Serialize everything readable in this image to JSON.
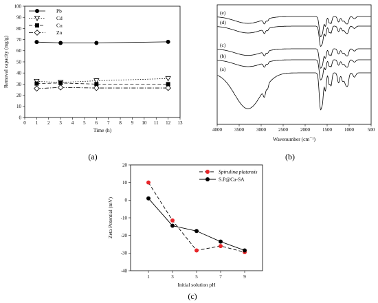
{
  "chart_data": [
    {
      "type": "scatter",
      "panel_label": "(a)",
      "xlabel": "Time (h)",
      "ylabel": "Removal capacity (mg/g)",
      "xlim": [
        0,
        13
      ],
      "ylim": [
        0,
        100
      ],
      "x_ticks": [
        "0",
        "1",
        "2",
        "3",
        "4",
        "5",
        "6",
        "7",
        "8",
        "9",
        "10",
        "11",
        "12",
        "13"
      ],
      "y_ticks": [
        "0",
        "10",
        "20",
        "30",
        "40",
        "50",
        "60",
        "70",
        "80",
        "90",
        "100"
      ],
      "legend_position": "top-left",
      "x": [
        1,
        3,
        6,
        12
      ],
      "series": [
        {
          "name": "Pb",
          "marker": "filled-circle",
          "line": "solid",
          "values": [
            67.8,
            67,
            67,
            68
          ]
        },
        {
          "name": "Cd",
          "marker": "open-triangle-down",
          "line": "dotted",
          "values": [
            32.5,
            31.5,
            33,
            35
          ]
        },
        {
          "name": "Cu",
          "marker": "filled-square",
          "line": "dashed",
          "values": [
            30.5,
            31,
            30,
            30
          ]
        },
        {
          "name": "Zn",
          "marker": "open-diamond",
          "line": "dash-dot",
          "values": [
            26,
            27,
            26.5,
            26.5
          ]
        }
      ]
    },
    {
      "type": "line",
      "panel_label": "(b)",
      "xlabel": "Wavenumber (cm⁻¹)",
      "xlim": [
        4000,
        500
      ],
      "x_ticks": [
        "4000",
        "3500",
        "3000",
        "2500",
        "2000",
        "1500",
        "1000",
        "500"
      ],
      "curve_labels": [
        "(e)",
        "(d)",
        "(c)",
        "(b)",
        "(a)"
      ]
    },
    {
      "type": "line",
      "panel_label": "(c)",
      "xlabel": "Initial solution pH",
      "ylabel": "Zeta Potential (mV)",
      "ylim": [
        -40,
        20
      ],
      "categories": [
        "1",
        "3",
        "5",
        "7",
        "9"
      ],
      "x_ticks": [
        "1",
        "3",
        "5",
        "7",
        "9"
      ],
      "y_ticks": [
        "20",
        "10",
        "0",
        "-10",
        "-20",
        "-30",
        "-40"
      ],
      "legend_position": "top-right",
      "series": [
        {
          "name": "Spirulina platensis",
          "color": "#e8262a",
          "line": "dashed",
          "values": [
            10,
            -11.5,
            -28.5,
            -26,
            -29.5
          ]
        },
        {
          "name": "S.P@Ca-SA",
          "color": "#000000",
          "line": "solid",
          "values": [
            1,
            -14.5,
            -17.5,
            -23.5,
            -28.5
          ]
        }
      ]
    }
  ]
}
